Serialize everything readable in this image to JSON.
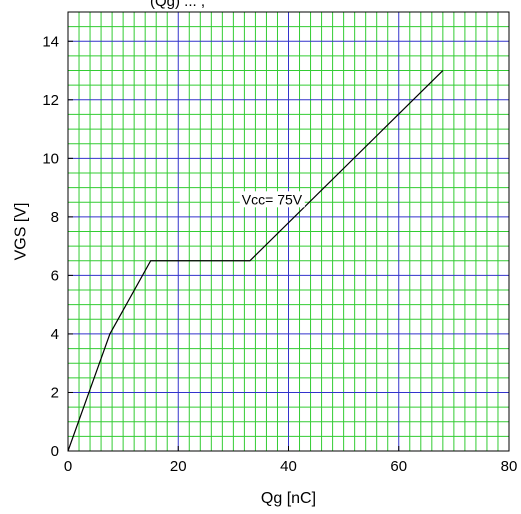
{
  "top_title_fragment": "(Qg)   ...   ,",
  "chart_data": {
    "type": "line",
    "title": "",
    "xlabel": "Qg [nC]",
    "ylabel": "VGS [V]",
    "xlim": [
      0,
      80
    ],
    "ylim": [
      0,
      15
    ],
    "xticks": [
      "0",
      "20",
      "40",
      "60",
      "80"
    ],
    "yticks": [
      "0",
      "2",
      "4",
      "6",
      "8",
      "10",
      "12",
      "14"
    ],
    "grid": true,
    "colors": {
      "minor_grid": "#33cc33",
      "major_grid": "#3333cc",
      "line": "#000000"
    },
    "series": [
      {
        "x": [
          0,
          7.6,
          15,
          33,
          68
        ],
        "y": [
          0,
          4,
          6.5,
          6.5,
          13
        ]
      }
    ],
    "annotations": [
      {
        "text": "Vcc= 75V",
        "x": 37,
        "y": 8.6
      }
    ]
  }
}
